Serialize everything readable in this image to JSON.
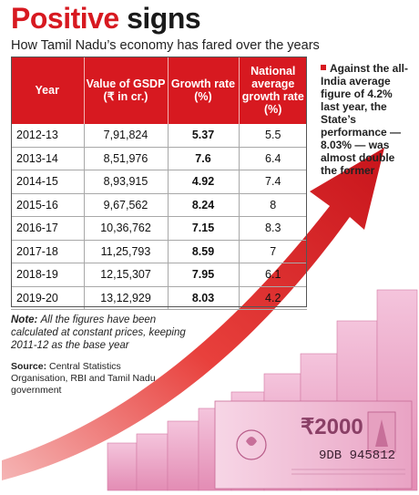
{
  "chart_data": {
    "type": "table",
    "title_part1": "Positive",
    "title_part2": "signs",
    "subtitle": "How Tamil Nadu’s economy has fared over the years",
    "headers": [
      "Year",
      "Value of GSDP (₹ in cr.)",
      "Growth rate (%)",
      "National average growth rate (%)"
    ],
    "rows": [
      {
        "year": "2012-13",
        "gsdp": "7,91,824",
        "growth": "5.37",
        "national": "5.5"
      },
      {
        "year": "2013-14",
        "gsdp": "8,51,976",
        "growth": "7.6",
        "national": "6.4"
      },
      {
        "year": "2014-15",
        "gsdp": "8,93,915",
        "growth": "4.92",
        "national": "7.4"
      },
      {
        "year": "2015-16",
        "gsdp": "9,67,562",
        "growth": "8.24",
        "national": "8"
      },
      {
        "year": "2016-17",
        "gsdp": "10,36,762",
        "growth": "7.15",
        "national": "8.3"
      },
      {
        "year": "2017-18",
        "gsdp": "11,25,793",
        "growth": "8.59",
        "national": "7"
      },
      {
        "year": "2018-19",
        "gsdp": "12,15,307",
        "growth": "7.95",
        "national": "6.1"
      },
      {
        "year": "2019-20",
        "gsdp": "13,12,929",
        "growth": "8.03",
        "national": "4.2"
      }
    ],
    "callout": "Against the all-India average figure of 4.2% last year, the State’s performance — 8.03% — was almost double the former",
    "note_label": "Note:",
    "note_text": "All the figures have been calculated at constant prices, keeping 2011-12 as the base year",
    "source_label": "Source:",
    "source_text": "Central Statistics Organisation, RBI and Tamil Nadu government",
    "banknote_value": "₹2000",
    "banknote_serial": "9DB 945812"
  },
  "colors": {
    "accent": "#d71920",
    "note_pink": "#e98fb8",
    "note_pink_light": "#f6cde0"
  }
}
